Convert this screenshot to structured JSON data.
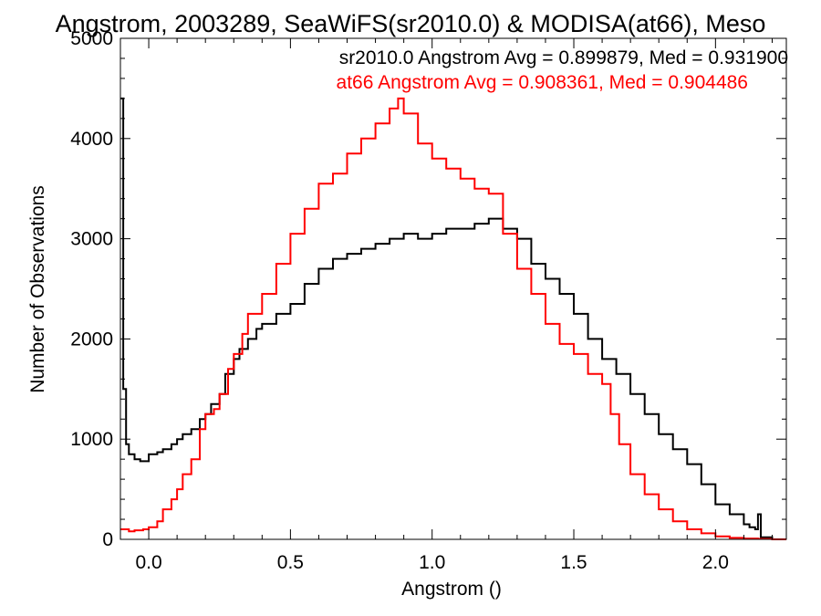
{
  "chart_data": {
    "type": "line",
    "title": "Angstrom, 2003289, SeaWiFS(sr2010.0) & MODISA(at66), Meso",
    "xlabel": "Angstrom ()",
    "ylabel": "Number of Observations",
    "xlim": [
      -0.1,
      2.25
    ],
    "ylim": [
      0,
      5000
    ],
    "x_ticks": [
      0.0,
      0.5,
      1.0,
      1.5,
      2.0
    ],
    "x_tick_labels": [
      "0.0",
      "0.5",
      "1.0",
      "1.5",
      "2.0"
    ],
    "y_ticks": [
      0,
      1000,
      2000,
      3000,
      4000,
      5000
    ],
    "y_tick_labels": [
      "0",
      "1000",
      "2000",
      "3000",
      "4000",
      "5000"
    ],
    "grid": false,
    "step": true,
    "annotations": [
      {
        "text": "sr2010.0 Angstrom Avg = 0.899879, Med = 0.931900",
        "color": "#000000"
      },
      {
        "text": "at66 Angstrom Avg = 0.908361, Med = 0.904486",
        "color": "#ff0000"
      }
    ],
    "series": [
      {
        "color": "#000000",
        "x": [
          -0.1,
          -0.09,
          -0.08,
          -0.07,
          -0.05,
          -0.03,
          0.0,
          0.03,
          0.05,
          0.08,
          0.1,
          0.12,
          0.15,
          0.18,
          0.2,
          0.22,
          0.25,
          0.27,
          0.3,
          0.32,
          0.35,
          0.38,
          0.4,
          0.45,
          0.5,
          0.55,
          0.6,
          0.65,
          0.7,
          0.75,
          0.8,
          0.85,
          0.9,
          0.95,
          1.0,
          1.05,
          1.1,
          1.15,
          1.2,
          1.25,
          1.3,
          1.35,
          1.4,
          1.45,
          1.5,
          1.55,
          1.6,
          1.65,
          1.7,
          1.75,
          1.8,
          1.85,
          1.9,
          1.95,
          2.0,
          2.05,
          2.1,
          2.12,
          2.14,
          2.15,
          2.16,
          2.2,
          2.25
        ],
        "values": [
          4400,
          1500,
          950,
          850,
          800,
          780,
          850,
          870,
          900,
          950,
          1000,
          1050,
          1100,
          1200,
          1250,
          1350,
          1450,
          1650,
          1800,
          1900,
          2000,
          2100,
          2150,
          2250,
          2350,
          2550,
          2700,
          2800,
          2850,
          2900,
          2950,
          3000,
          3050,
          3000,
          3050,
          3100,
          3100,
          3150,
          3200,
          3100,
          3000,
          2750,
          2600,
          2450,
          2250,
          2000,
          1800,
          1650,
          1450,
          1250,
          1050,
          900,
          750,
          550,
          350,
          250,
          150,
          120,
          100,
          250,
          20,
          0,
          0
        ]
      },
      {
        "color": "#ff0000",
        "x": [
          -0.1,
          -0.07,
          -0.05,
          -0.02,
          0.0,
          0.03,
          0.05,
          0.08,
          0.1,
          0.12,
          0.15,
          0.18,
          0.2,
          0.23,
          0.25,
          0.28,
          0.3,
          0.33,
          0.35,
          0.4,
          0.45,
          0.5,
          0.55,
          0.6,
          0.65,
          0.7,
          0.75,
          0.8,
          0.85,
          0.88,
          0.9,
          0.95,
          1.0,
          1.05,
          1.1,
          1.15,
          1.2,
          1.25,
          1.3,
          1.35,
          1.4,
          1.45,
          1.5,
          1.55,
          1.6,
          1.63,
          1.66,
          1.7,
          1.75,
          1.8,
          1.85,
          1.9,
          1.95,
          2.0,
          2.05,
          2.1,
          2.15,
          2.2,
          2.25
        ],
        "values": [
          100,
          80,
          90,
          100,
          120,
          180,
          300,
          400,
          500,
          650,
          800,
          1100,
          1250,
          1300,
          1450,
          1700,
          1850,
          2050,
          2250,
          2450,
          2750,
          3050,
          3300,
          3550,
          3650,
          3850,
          4000,
          4150,
          4300,
          4400,
          4250,
          3950,
          3800,
          3700,
          3600,
          3500,
          3450,
          3050,
          2700,
          2450,
          2150,
          1950,
          1850,
          1650,
          1550,
          1250,
          950,
          650,
          450,
          300,
          180,
          100,
          60,
          30,
          15,
          8,
          5,
          0,
          0
        ]
      }
    ]
  }
}
